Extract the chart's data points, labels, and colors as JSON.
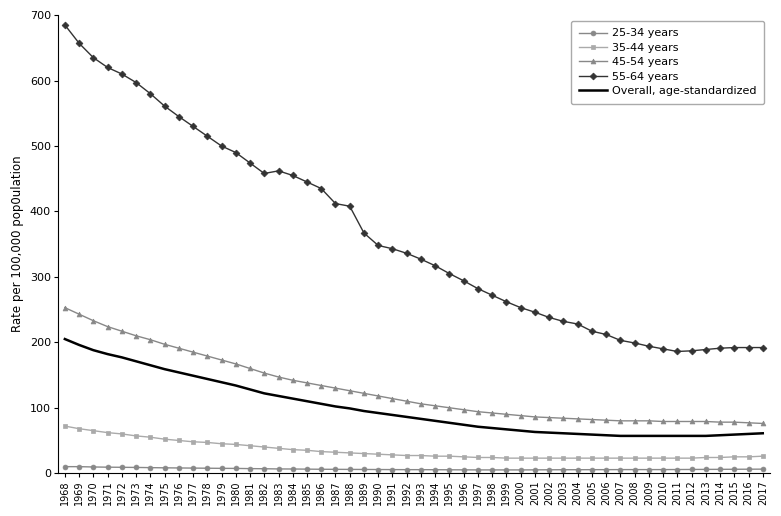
{
  "years": [
    1968,
    1969,
    1970,
    1971,
    1972,
    1973,
    1974,
    1975,
    1976,
    1977,
    1978,
    1979,
    1980,
    1981,
    1982,
    1983,
    1984,
    1985,
    1986,
    1987,
    1988,
    1989,
    1990,
    1991,
    1992,
    1993,
    1994,
    1995,
    1996,
    1997,
    1998,
    1999,
    2000,
    2001,
    2002,
    2003,
    2004,
    2005,
    2006,
    2007,
    2008,
    2009,
    2010,
    2011,
    2012,
    2013,
    2014,
    2015,
    2016,
    2017
  ],
  "series_25_34": [
    10,
    10,
    9.5,
    9.2,
    9.0,
    8.8,
    8.5,
    8.2,
    8.0,
    7.8,
    7.6,
    7.4,
    7.3,
    7.0,
    6.8,
    6.5,
    6.4,
    6.2,
    6.0,
    5.9,
    5.8,
    5.7,
    5.6,
    5.5,
    5.4,
    5.4,
    5.3,
    5.2,
    5.1,
    5.0,
    5.0,
    5.0,
    5.0,
    5.1,
    5.2,
    5.3,
    5.3,
    5.4,
    5.4,
    5.5,
    5.5,
    5.5,
    5.5,
    5.6,
    5.7,
    5.8,
    5.9,
    6.0,
    6.1,
    6.2
  ],
  "series_35_44": [
    72,
    68,
    65,
    62,
    60,
    57,
    55,
    52,
    50,
    48,
    47,
    45,
    44,
    42,
    40,
    38,
    36,
    35,
    33,
    32,
    31,
    30,
    29,
    28,
    27,
    27,
    26,
    26,
    25,
    24,
    24,
    23,
    23,
    23,
    23,
    23,
    23,
    23,
    23,
    23,
    23,
    23,
    23,
    23,
    23,
    24,
    24,
    25,
    25,
    26
  ],
  "series_45_54": [
    253,
    243,
    233,
    224,
    217,
    210,
    204,
    197,
    191,
    185,
    179,
    173,
    167,
    160,
    153,
    147,
    142,
    138,
    134,
    130,
    126,
    122,
    118,
    114,
    110,
    106,
    103,
    100,
    97,
    94,
    92,
    90,
    88,
    86,
    85,
    84,
    83,
    82,
    81,
    80,
    80,
    80,
    79,
    79,
    79,
    79,
    78,
    78,
    77,
    76
  ],
  "series_55_64": [
    685,
    657,
    635,
    620,
    610,
    597,
    580,
    561,
    545,
    530,
    515,
    500,
    490,
    474,
    458,
    462,
    455,
    445,
    435,
    412,
    408,
    367,
    348,
    343,
    336,
    327,
    317,
    305,
    294,
    282,
    272,
    262,
    253,
    246,
    238,
    232,
    228,
    217,
    212,
    203,
    199,
    194,
    190,
    186,
    187,
    189,
    191,
    192,
    192,
    192
  ],
  "series_overall": [
    205,
    196,
    188,
    182,
    177,
    171,
    165,
    159,
    154,
    149,
    144,
    139,
    134,
    128,
    122,
    118,
    114,
    110,
    106,
    102,
    99,
    95,
    92,
    89,
    86,
    83,
    80,
    77,
    74,
    71,
    69,
    67,
    65,
    63,
    62,
    61,
    60,
    59,
    58,
    57,
    57,
    57,
    57,
    57,
    57,
    57,
    58,
    59,
    60,
    61
  ],
  "ylabel": "Rate per 100,000 pop0ulation",
  "ylim": [
    0,
    700
  ],
  "yticks": [
    0,
    100,
    200,
    300,
    400,
    500,
    600,
    700
  ],
  "colors": {
    "25_34": "#888888",
    "35_44": "#aaaaaa",
    "45_54": "#888888",
    "55_64": "#333333",
    "overall": "#000000"
  },
  "legend_labels": [
    "25-34 years",
    "35-44 years",
    "45-54 years",
    "55-64 years",
    "Overall, age-standardized"
  ],
  "background_color": "#ffffff"
}
